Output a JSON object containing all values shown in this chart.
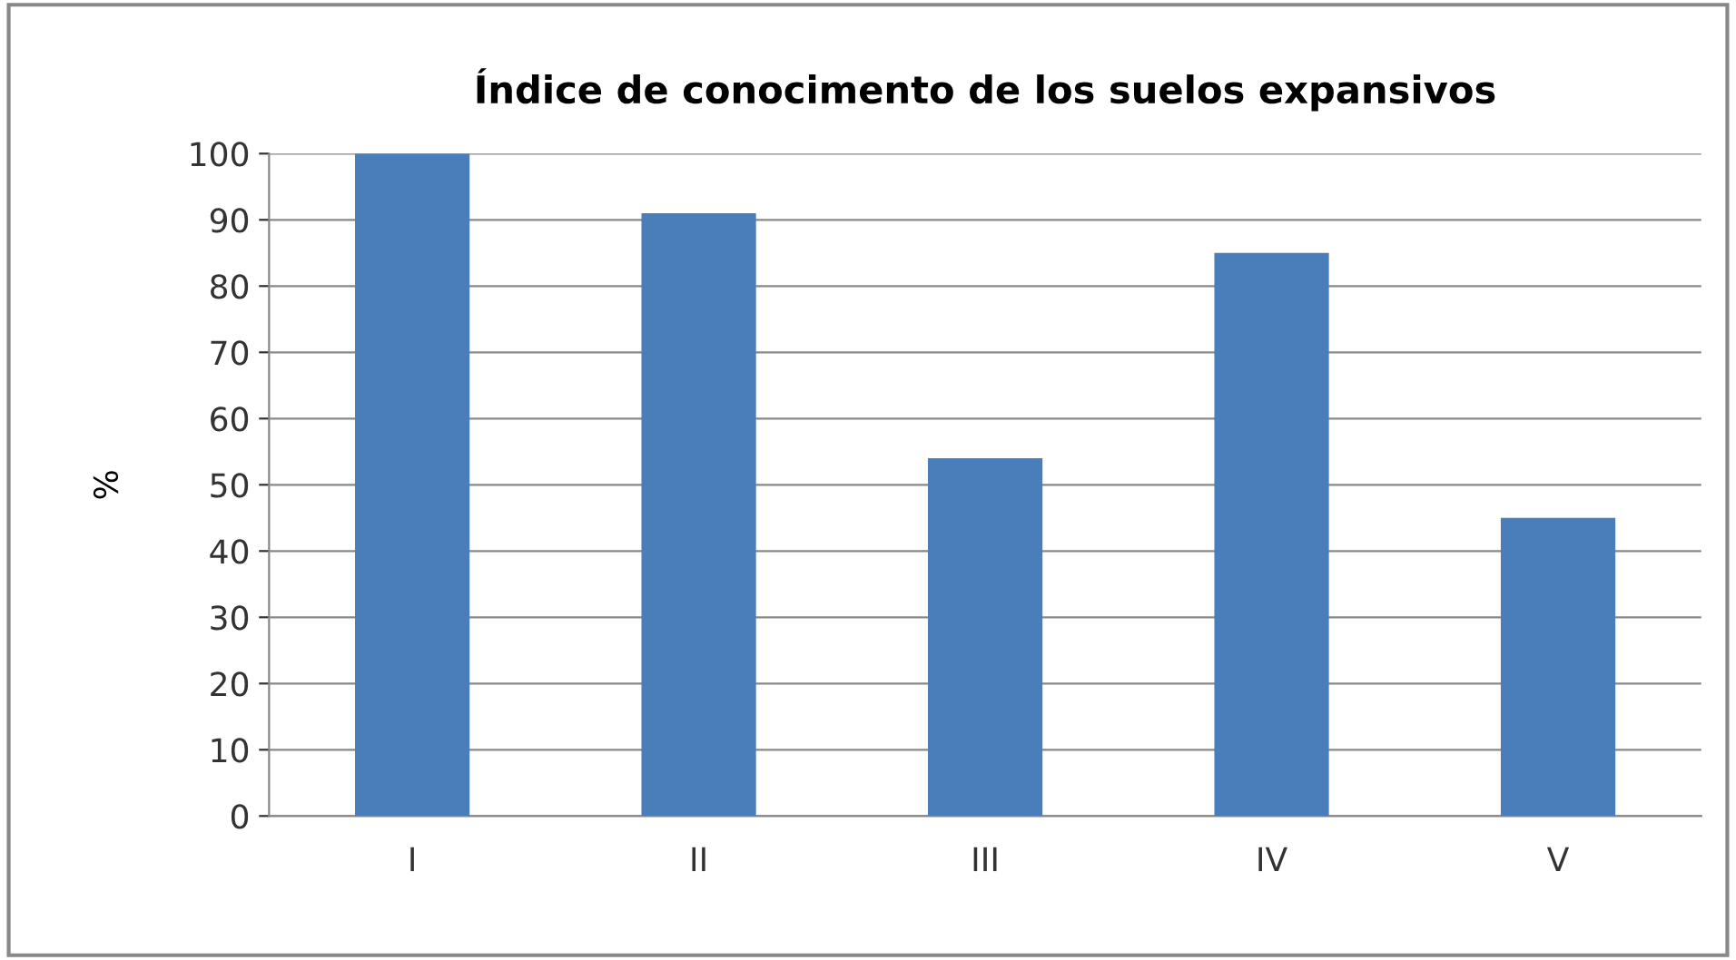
{
  "chart_data": {
    "type": "bar",
    "title": "Índice de conocimento de los suelos expansivos",
    "ylabel": "%",
    "categories": [
      "I",
      "II",
      "III",
      "IV",
      "V"
    ],
    "values": [
      100,
      91,
      54,
      85,
      45
    ],
    "color": "#4a7ebb",
    "ylim": [
      0,
      100
    ],
    "yticks": [
      0,
      10,
      20,
      30,
      40,
      50,
      60,
      70,
      80,
      90,
      100
    ],
    "grid": "y",
    "legend": false
  }
}
